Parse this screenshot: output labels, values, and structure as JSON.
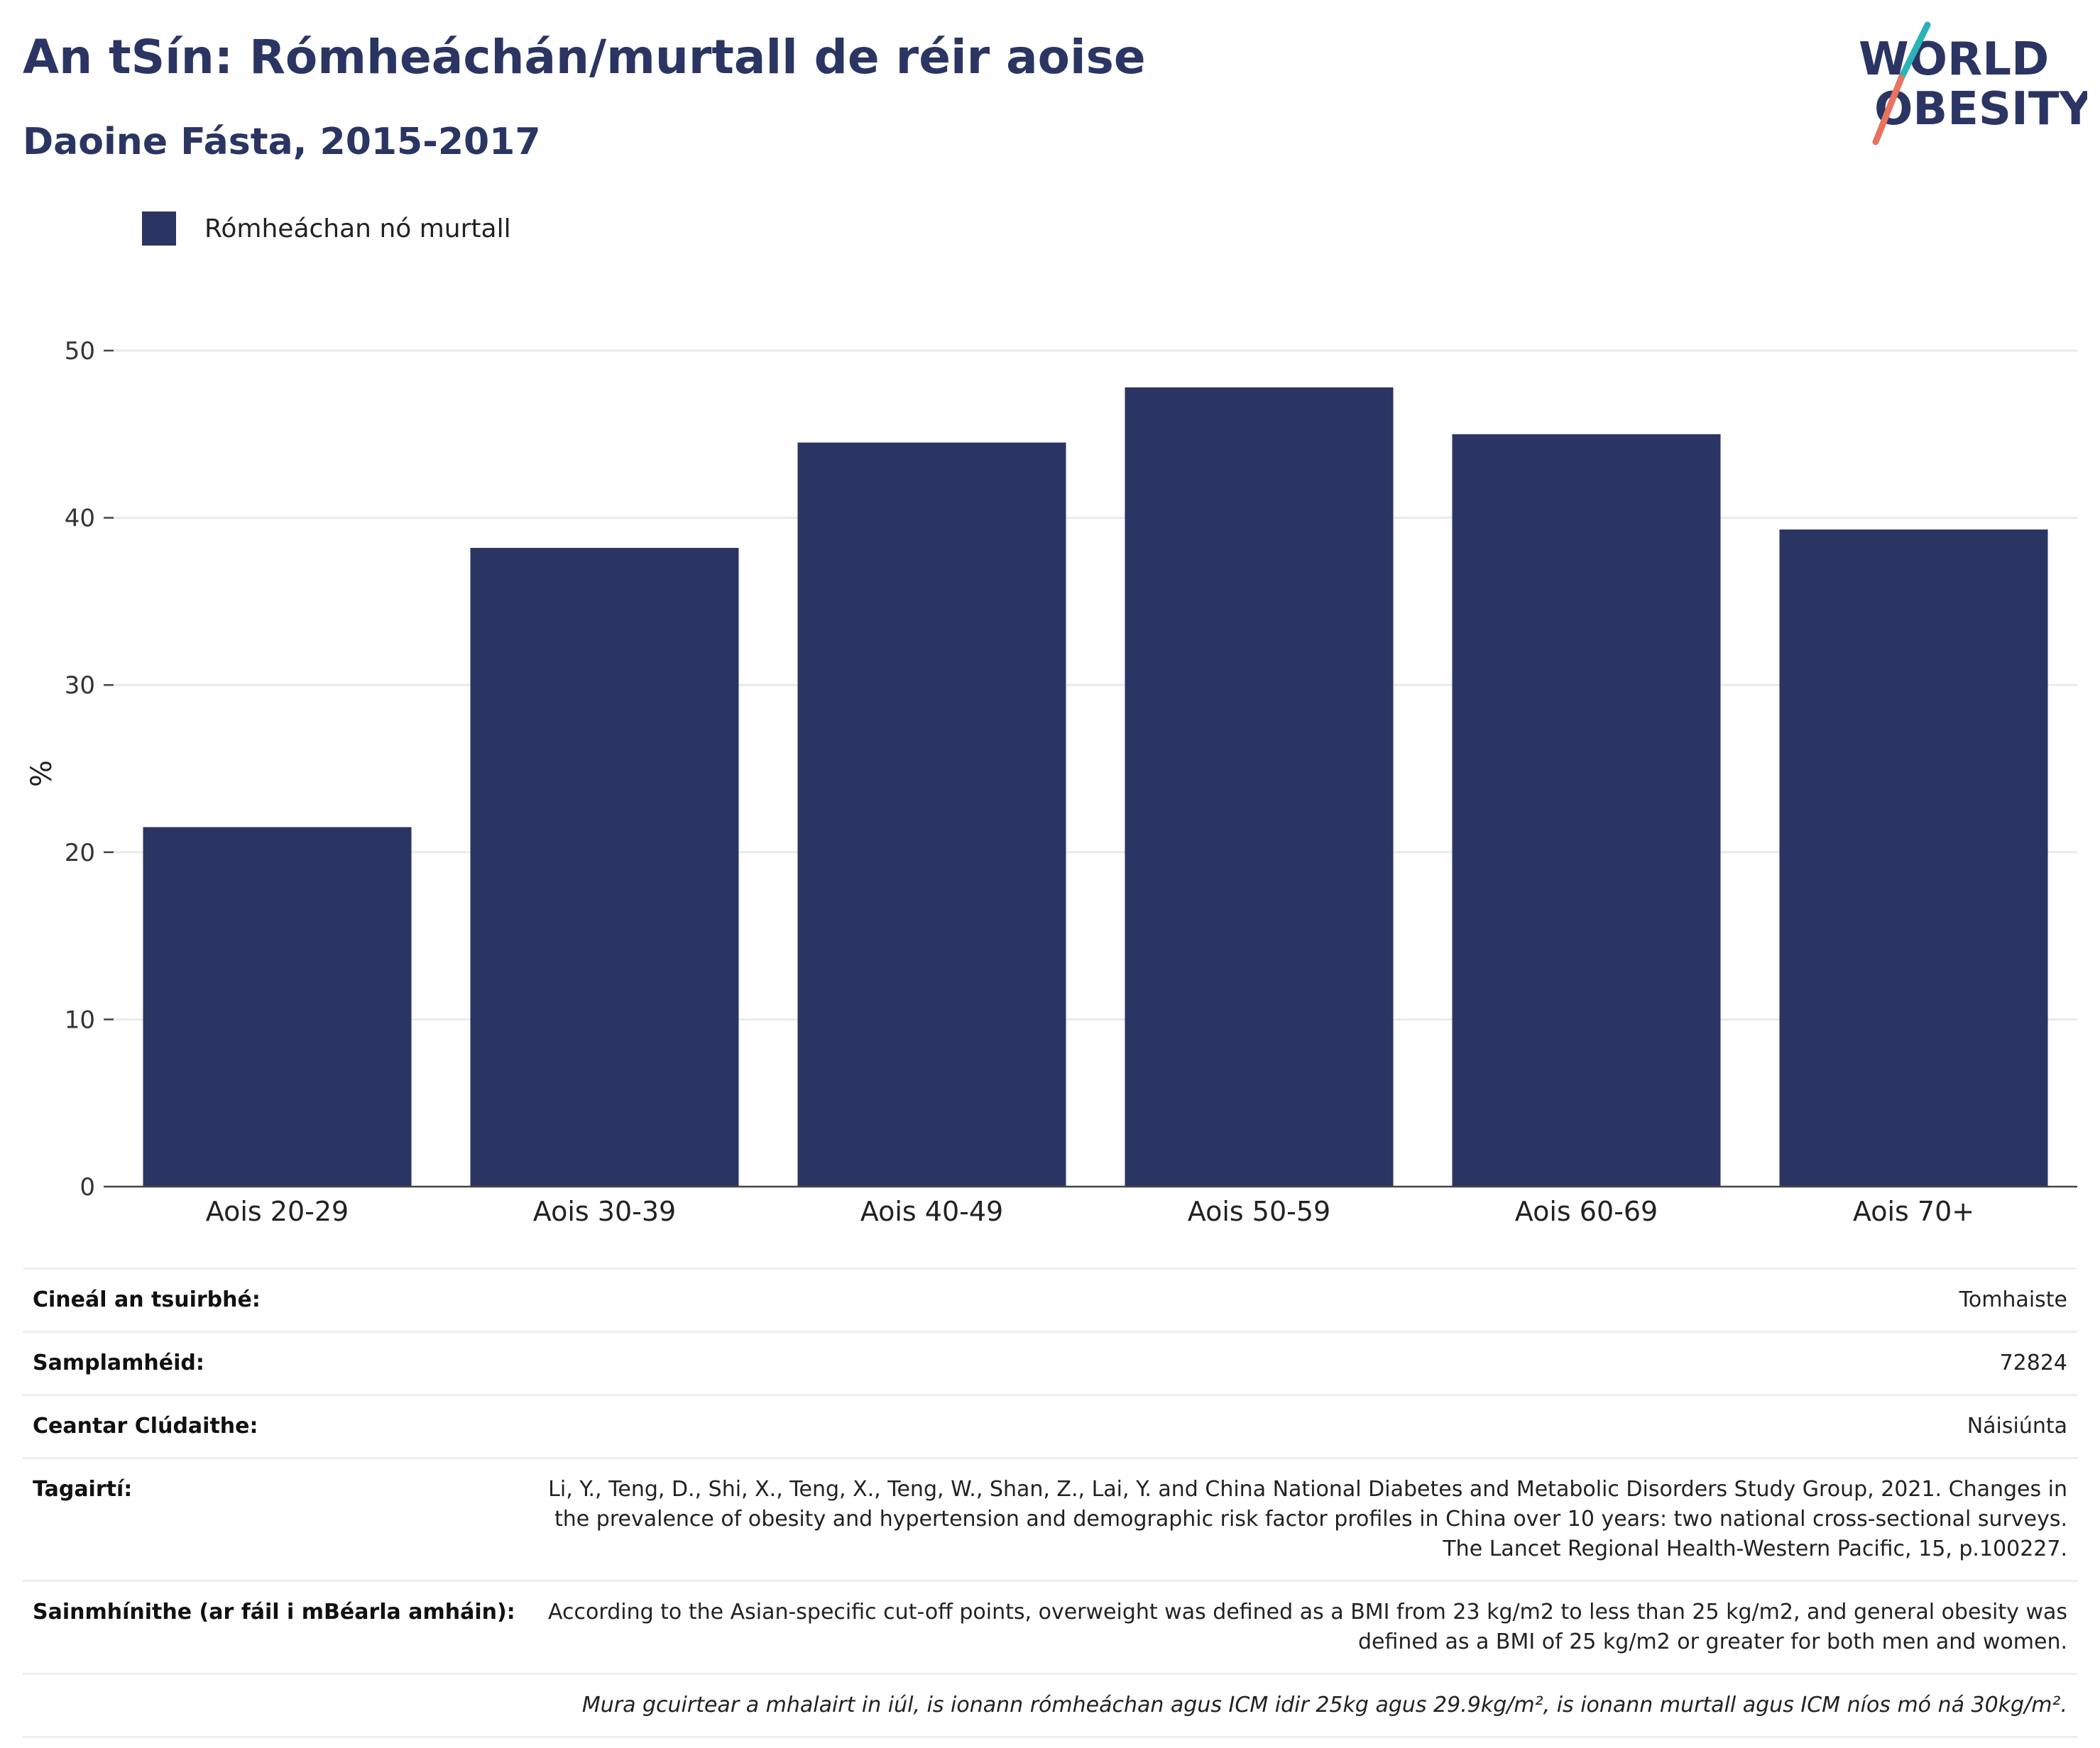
{
  "header": {
    "title": "An tSín: Rómheáchán/murtall de réir aoise",
    "subtitle": "Daoine Fásta, 2015-2017"
  },
  "logo": {
    "line1": "WORLD",
    "line2": "OBESITY",
    "colors": {
      "text": "#2a3563",
      "slash_top": "#2bb3b8",
      "slash_bottom": "#e8735f"
    }
  },
  "legend": {
    "label": "Rómheáchan nó murtall",
    "color": "#2a3563"
  },
  "chart_data": {
    "type": "bar",
    "categories": [
      "Aois 20-29",
      "Aois 30-39",
      "Aois 40-49",
      "Aois 50-59",
      "Aois 60-69",
      "Aois 70+"
    ],
    "series": [
      {
        "name": "Rómheáchan nó murtall",
        "values": [
          21.5,
          38.2,
          44.5,
          47.8,
          45.0,
          39.3
        ],
        "color": "#2a3563"
      }
    ],
    "ylabel": "%",
    "xlabel": "",
    "ylim": [
      0,
      50
    ],
    "yticks": [
      0,
      10,
      20,
      30,
      40,
      50
    ],
    "grid": true,
    "legend_position": "top-left"
  },
  "info": {
    "rows": [
      {
        "key": "Cineál an tsuirbhé:",
        "value": "Tomhaiste"
      },
      {
        "key": "Samplamhéid:",
        "value": "72824"
      },
      {
        "key": "Ceantar Clúdaithe:",
        "value": "Náisiúnta"
      },
      {
        "key": "Tagairtí:",
        "value": "Li, Y., Teng, D., Shi, X., Teng, X., Teng, W., Shan, Z., Lai, Y. and China National Diabetes and Metabolic Disorders Study Group, 2021. Changes in the prevalence of obesity and hypertension and demographic risk factor profiles in China over 10 years: two national cross-sectional surveys. The Lancet Regional Health-Western Pacific, 15, p.100227."
      },
      {
        "key": "Sainmhínithe (ar fáil i mBéarla amháin):",
        "value": "According to the Asian-specific cut-off points, overweight was defined as a BMI from 23 kg/m2 to less than 25 kg/m2, and general obesity was defined as a BMI of 25 kg/m2 or greater for both men and women."
      }
    ],
    "note": "Mura gcuirtear a mhalairt in iúl, is ionann rómheáchan agus ICM idir 25kg agus 29.9kg/m², is ionann murtall agus ICM níos mó ná 30kg/m²."
  }
}
